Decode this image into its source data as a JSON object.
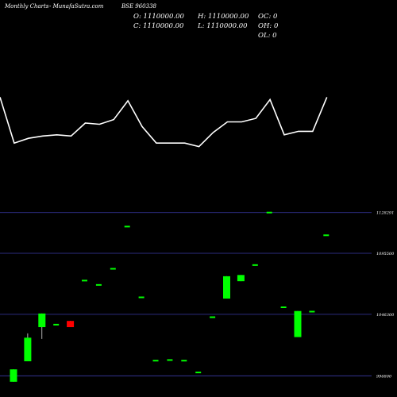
{
  "header": {
    "chart_name": "Monthly Charts",
    "source": "- MunafaSutra.com",
    "symbol": "BSE 960338"
  },
  "ohlc": {
    "open": "O: 1110000.00",
    "high": "H: 1110000.00",
    "close": "C: 1110000.00",
    "low": "L: 1110000.00",
    "oc": "OC: 0",
    "oh": "OH: 0",
    "ol": "OL: 0"
  },
  "colors": {
    "background": "#000000",
    "line": "#ffffff",
    "up": "#00ff00",
    "down": "#ff0000",
    "flat": "#00ff00",
    "grid": "#3a3aa8"
  },
  "chart_data": {
    "type": "candlestick",
    "title": "",
    "xlabel": "",
    "ylabel": "",
    "ylim": [
      990600,
      1140900
    ],
    "y_ticks": [
      {
        "value": 1128291,
        "label": "1128291"
      },
      {
        "value": 1095500,
        "label": "1095500"
      },
      {
        "value": 1046300,
        "label": "1046300"
      },
      {
        "value": 996800,
        "label": "996800"
      }
    ],
    "candles": [
      {
        "o": 992000,
        "h": 1002000,
        "l": 992000,
        "c": 1002000
      },
      {
        "o": 1008500,
        "h": 1031000,
        "l": 1008500,
        "c": 1027500
      },
      {
        "o": 1036000,
        "h": 1047000,
        "l": 1026500,
        "c": 1047000
      },
      {
        "o": 1038000,
        "h": 1038000,
        "l": 1038000,
        "c": 1038000
      },
      {
        "o": 1041000,
        "h": 1041000,
        "l": 1036000,
        "c": 1036000
      },
      {
        "o": 1073500,
        "h": 1073500,
        "l": 1073500,
        "c": 1073500
      },
      {
        "o": 1070000,
        "h": 1070000,
        "l": 1070000,
        "c": 1070000
      },
      {
        "o": 1083000,
        "h": 1083000,
        "l": 1083000,
        "c": 1083000
      },
      {
        "o": 1117000,
        "h": 1117000,
        "l": 1117000,
        "c": 1117000
      },
      {
        "o": 1060000,
        "h": 1060000,
        "l": 1060000,
        "c": 1060000
      },
      {
        "o": 1009000,
        "h": 1009000,
        "l": 1009000,
        "c": 1009000
      },
      {
        "o": 1009500,
        "h": 1009500,
        "l": 1009500,
        "c": 1009500
      },
      {
        "o": 1009000,
        "h": 1009000,
        "l": 1009000,
        "c": 1009000
      },
      {
        "o": 999500,
        "h": 999500,
        "l": 999500,
        "c": 999500
      },
      {
        "o": 1044000,
        "h": 1044000,
        "l": 1044000,
        "c": 1044000
      },
      {
        "o": 1059000,
        "h": 1077000,
        "l": 1059000,
        "c": 1077000
      },
      {
        "o": 1073000,
        "h": 1078000,
        "l": 1073000,
        "c": 1078000
      },
      {
        "o": 1086000,
        "h": 1086000,
        "l": 1086000,
        "c": 1086000
      },
      {
        "o": 1128291,
        "h": 1128291,
        "l": 1128291,
        "c": 1128291
      },
      {
        "o": 1052000,
        "h": 1052000,
        "l": 1052000,
        "c": 1052000
      },
      {
        "o": 1028000,
        "h": 1049000,
        "l": 1028000,
        "c": 1049000
      },
      {
        "o": 1048500,
        "h": 1048500,
        "l": 1048500,
        "c": 1048500
      },
      {
        "o": 1110000,
        "h": 1110000,
        "l": 1110000,
        "c": 1110000
      }
    ],
    "line_series": [
      107,
      68,
      72,
      74,
      75,
      74,
      85,
      84,
      88,
      104,
      82,
      68,
      68,
      68,
      65,
      77,
      86,
      86,
      89,
      105,
      75,
      78,
      78,
      107
    ]
  }
}
